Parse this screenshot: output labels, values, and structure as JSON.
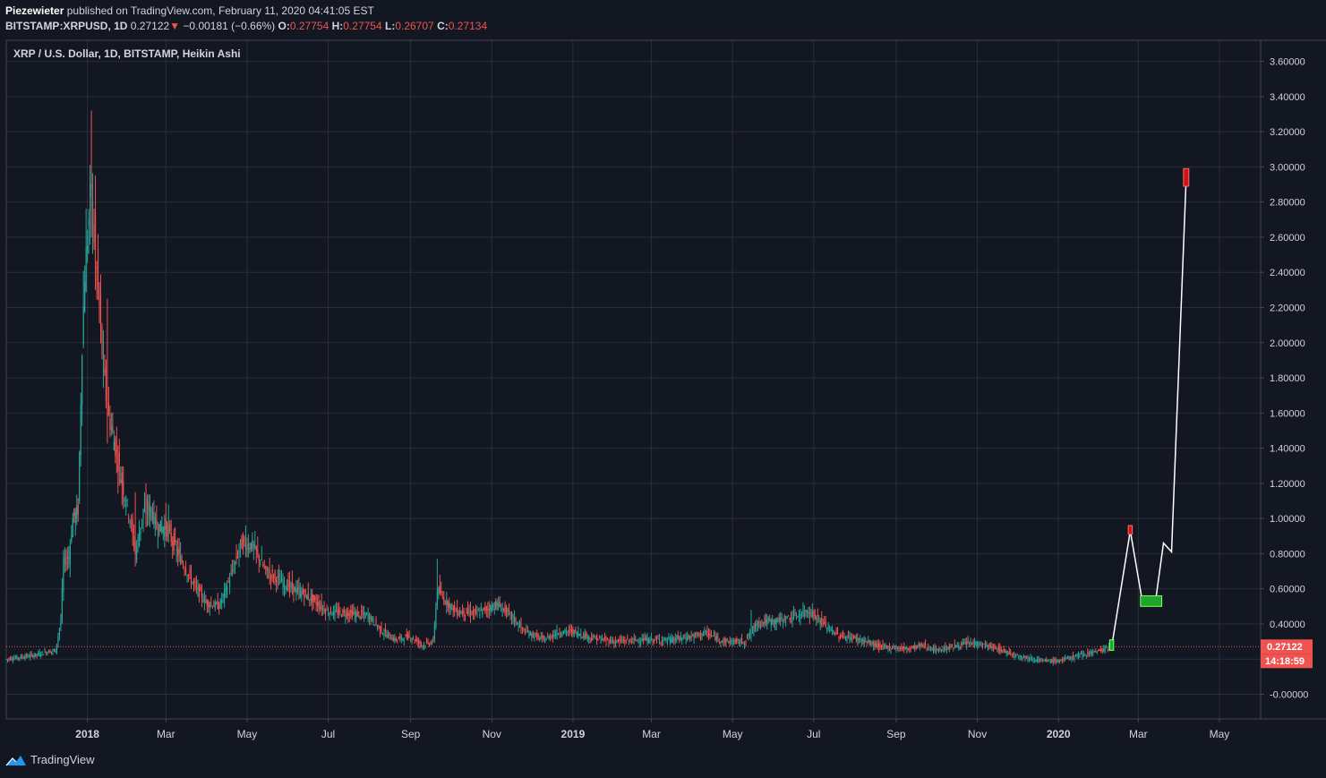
{
  "header": {
    "author": "Piezewieter",
    "published_text": "published on TradingView.com, February 11, 2020 04:41:05 EST",
    "symbol": "BITSTAMP:XRPUSD, 1D",
    "last": "0.27122",
    "change_arrow": "▼",
    "change": "−0.00181 (−0.66%)",
    "o_label": "O:",
    "o": "0.27754",
    "h_label": "H:",
    "h": "0.27754",
    "l_label": "L:",
    "l": "0.26707",
    "c_label": "C:",
    "c": "0.27134"
  },
  "footer": {
    "brand": "TradingView",
    "logo_icon": "tradingview-logo-icon"
  },
  "colors": {
    "background": "#131722",
    "grid": "#2a2e39",
    "up": "#26a69a",
    "down": "#ef5350",
    "price_line": "#ef5350",
    "projection_line": "#ffffff",
    "box_green": "#1fa62a",
    "box_red": "#c9151a"
  },
  "chart_data": {
    "type": "candlestick",
    "title": "XRP / U.S. Dollar, 1D, BITSTAMP, Heikin Ashi",
    "xlabel": "",
    "ylabel": "",
    "x_range": [
      "2017-11-01",
      "2020-06-01"
    ],
    "ylim": [
      -0.14,
      3.72
    ],
    "y_ticks": [
      "3.60000",
      "3.40000",
      "3.20000",
      "3.00000",
      "2.80000",
      "2.60000",
      "2.40000",
      "2.20000",
      "2.00000",
      "1.80000",
      "1.60000",
      "1.40000",
      "1.20000",
      "1.00000",
      "0.80000",
      "0.60000",
      "0.40000",
      "0.20000",
      "-0.00000"
    ],
    "x_ticks": [
      {
        "label": "2018",
        "date": "2018-01-01",
        "bold": true
      },
      {
        "label": "Mar",
        "date": "2018-03-01"
      },
      {
        "label": "May",
        "date": "2018-05-01"
      },
      {
        "label": "Jul",
        "date": "2018-07-01"
      },
      {
        "label": "Sep",
        "date": "2018-09-01"
      },
      {
        "label": "Nov",
        "date": "2018-11-01"
      },
      {
        "label": "2019",
        "date": "2019-01-01",
        "bold": true
      },
      {
        "label": "Mar",
        "date": "2019-03-01"
      },
      {
        "label": "May",
        "date": "2019-05-01"
      },
      {
        "label": "Jul",
        "date": "2019-07-01"
      },
      {
        "label": "Sep",
        "date": "2019-09-01"
      },
      {
        "label": "Nov",
        "date": "2019-11-01"
      },
      {
        "label": "2020",
        "date": "2020-01-01",
        "bold": true
      },
      {
        "label": "Mar",
        "date": "2020-03-01"
      },
      {
        "label": "May",
        "date": "2020-05-01"
      }
    ],
    "price_trend": [
      [
        "2017-11-01",
        0.2
      ],
      [
        "2017-11-10",
        0.21
      ],
      [
        "2017-11-20",
        0.22
      ],
      [
        "2017-12-01",
        0.24
      ],
      [
        "2017-12-08",
        0.25
      ],
      [
        "2017-12-12",
        0.42
      ],
      [
        "2017-12-14",
        0.75
      ],
      [
        "2017-12-18",
        0.78
      ],
      [
        "2017-12-21",
        1.0
      ],
      [
        "2017-12-25",
        1.05
      ],
      [
        "2017-12-28",
        2.0
      ],
      [
        "2017-12-30",
        2.4
      ],
      [
        "2018-01-04",
        2.9
      ],
      [
        "2018-01-06",
        2.6
      ],
      [
        "2018-01-09",
        2.3
      ],
      [
        "2018-01-12",
        1.95
      ],
      [
        "2018-01-16",
        1.6
      ],
      [
        "2018-01-18",
        1.55
      ],
      [
        "2018-01-22",
        1.4
      ],
      [
        "2018-01-27",
        1.2
      ],
      [
        "2018-02-02",
        1.0
      ],
      [
        "2018-02-06",
        0.8
      ],
      [
        "2018-02-12",
        1.05
      ],
      [
        "2018-02-18",
        1.05
      ],
      [
        "2018-02-22",
        0.95
      ],
      [
        "2018-03-01",
        0.95
      ],
      [
        "2018-03-10",
        0.8
      ],
      [
        "2018-03-20",
        0.65
      ],
      [
        "2018-03-31",
        0.52
      ],
      [
        "2018-04-10",
        0.5
      ],
      [
        "2018-04-20",
        0.7
      ],
      [
        "2018-04-26",
        0.85
      ],
      [
        "2018-05-05",
        0.85
      ],
      [
        "2018-05-15",
        0.7
      ],
      [
        "2018-05-31",
        0.62
      ],
      [
        "2018-06-15",
        0.56
      ],
      [
        "2018-06-30",
        0.47
      ],
      [
        "2018-07-15",
        0.46
      ],
      [
        "2018-07-31",
        0.45
      ],
      [
        "2018-08-10",
        0.36
      ],
      [
        "2018-08-20",
        0.31
      ],
      [
        "2018-08-31",
        0.33
      ],
      [
        "2018-09-10",
        0.28
      ],
      [
        "2018-09-18",
        0.3
      ],
      [
        "2018-09-21",
        0.6
      ],
      [
        "2018-09-25",
        0.55
      ],
      [
        "2018-10-05",
        0.47
      ],
      [
        "2018-10-20",
        0.46
      ],
      [
        "2018-11-05",
        0.51
      ],
      [
        "2018-11-15",
        0.45
      ],
      [
        "2018-11-25",
        0.36
      ],
      [
        "2018-12-10",
        0.31
      ],
      [
        "2018-12-20",
        0.35
      ],
      [
        "2018-12-31",
        0.36
      ],
      [
        "2019-01-15",
        0.32
      ],
      [
        "2019-02-01",
        0.3
      ],
      [
        "2019-02-20",
        0.31
      ],
      [
        "2019-03-15",
        0.31
      ],
      [
        "2019-04-01",
        0.33
      ],
      [
        "2019-04-10",
        0.35
      ],
      [
        "2019-04-25",
        0.3
      ],
      [
        "2019-05-10",
        0.3
      ],
      [
        "2019-05-20",
        0.41
      ],
      [
        "2019-06-05",
        0.42
      ],
      [
        "2019-06-20",
        0.45
      ],
      [
        "2019-06-27",
        0.48
      ],
      [
        "2019-07-10",
        0.39
      ],
      [
        "2019-07-20",
        0.33
      ],
      [
        "2019-08-01",
        0.32
      ],
      [
        "2019-08-20",
        0.27
      ],
      [
        "2019-09-10",
        0.26
      ],
      [
        "2019-09-20",
        0.28
      ],
      [
        "2019-10-01",
        0.25
      ],
      [
        "2019-10-25",
        0.29
      ],
      [
        "2019-11-01",
        0.29
      ],
      [
        "2019-11-15",
        0.26
      ],
      [
        "2019-12-01",
        0.22
      ],
      [
        "2019-12-20",
        0.19
      ],
      [
        "2020-01-01",
        0.19
      ],
      [
        "2020-01-15",
        0.22
      ],
      [
        "2020-02-01",
        0.25
      ],
      [
        "2020-02-10",
        0.27
      ]
    ],
    "spikes": [
      [
        "2018-01-04",
        3.32,
        2.6
      ],
      [
        "2018-01-07",
        2.95,
        2.3
      ],
      [
        "2018-01-16",
        2.25,
        1.55
      ],
      [
        "2018-02-06",
        1.15,
        0.87
      ],
      [
        "2018-02-14",
        1.2,
        0.95
      ],
      [
        "2018-03-03",
        1.08,
        0.9
      ],
      [
        "2018-04-30",
        0.96,
        0.78
      ],
      [
        "2018-09-21",
        0.77,
        0.48
      ],
      [
        "2019-06-28",
        0.5,
        0.4
      ],
      [
        "2019-05-15",
        0.48,
        0.3
      ]
    ],
    "current_price": {
      "value": 0.27122,
      "label": "0.27122",
      "countdown": "14:18:59"
    },
    "projection": {
      "points": [
        [
          "2020-02-10",
          0.27
        ],
        [
          "2020-02-24",
          0.93
        ],
        [
          "2020-03-04",
          0.53
        ],
        [
          "2020-03-14",
          0.53
        ],
        [
          "2020-03-20",
          0.86
        ],
        [
          "2020-03-26",
          0.81
        ],
        [
          "2020-04-06",
          2.93
        ]
      ],
      "boxes": [
        {
          "date": "2020-02-10",
          "top": 0.31,
          "bottom": 0.25,
          "width_days": 3,
          "color": "green"
        },
        {
          "date": "2020-02-24",
          "top": 0.96,
          "bottom": 0.91,
          "width_days": 3,
          "color": "red"
        },
        {
          "date": "2020-03-04",
          "top": 0.56,
          "bottom": 0.5,
          "width_days": 16,
          "color": "green"
        },
        {
          "date": "2020-04-06",
          "top": 2.99,
          "bottom": 2.89,
          "width_days": 4,
          "color": "red"
        }
      ]
    }
  }
}
